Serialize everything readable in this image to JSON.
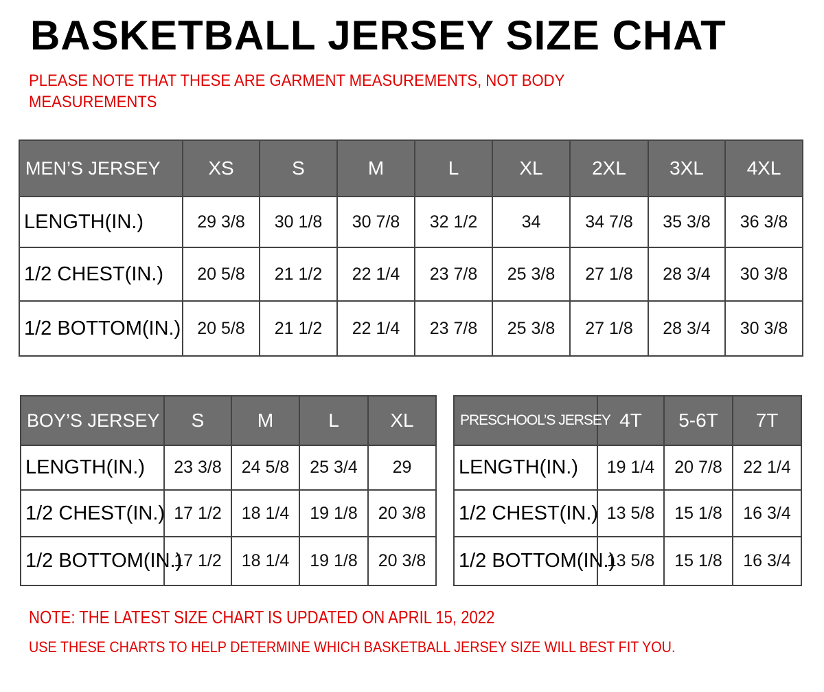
{
  "title": "BASKETBALL JERSEY SIZE CHAT",
  "subtitle_line1": "PLEASE NOTE THAT THESE ARE GARMENT MEASUREMENTS, NOT BODY",
  "subtitle_line2": "MEASUREMENTS",
  "colors": {
    "header_bg": "#6e6e6e",
    "note": "#e00000"
  },
  "tables": {
    "men": {
      "header": [
        "MEN’S JERSEY",
        "XS",
        "S",
        "M",
        "L",
        "XL",
        "2XL",
        "3XL",
        "4XL"
      ],
      "rows": [
        [
          "LENGTH(IN.)",
          "29  3/8",
          "30  1/8",
          "30  7/8",
          "32  1/2",
          "34",
          "34  7/8",
          "35  3/8",
          "36  3/8"
        ],
        [
          "1/2  CHEST(IN.)",
          "20  5/8",
          "21  1/2",
          "22  1/4",
          "23  7/8",
          "25  3/8",
          "27  1/8",
          "28  3/4",
          "30  3/8"
        ],
        [
          "1/2  BOTTOM(IN.)",
          "20  5/8",
          "21  1/2",
          "22  1/4",
          "23  7/8",
          "25  3/8",
          "27  1/8",
          "28  3/4",
          "30  3/8"
        ]
      ]
    },
    "boy": {
      "header": [
        "BOY’S JERSEY",
        "S",
        "M",
        "L",
        "XL"
      ],
      "rows": [
        [
          "LENGTH(IN.)",
          "23  3/8",
          "24  5/8",
          "25  3/4",
          "29"
        ],
        [
          "1/2  CHEST(IN.)",
          "17  1/2",
          "18  1/4",
          "19  1/8",
          "20  3/8"
        ],
        [
          "1/2  BOTTOM(IN.)",
          "17  1/2",
          "18  1/4",
          "19  1/8",
          "20  3/8"
        ]
      ]
    },
    "pre": {
      "header": [
        "PRESCHOOL’S JERSEY",
        "4T",
        "5-6T",
        "7T"
      ],
      "rows": [
        [
          "LENGTH(IN.)",
          "19  1/4",
          "20  7/8",
          "22  1/4"
        ],
        [
          "1/2  CHEST(IN.)",
          "13  5/8",
          "15  1/8",
          "16  3/4"
        ],
        [
          "1/2  BOTTOM(IN.)",
          "13  5/8",
          "15  1/8",
          "16  3/4"
        ]
      ]
    }
  },
  "footer_line1": "NOTE: THE LATEST SIZE CHART IS UPDATED ON APRIL 15, 2022",
  "footer_line2": "USE THESE CHARTS TO HELP DETERMINE WHICH  BASKETBALL JERSEY  SIZE WILL BEST FIT YOU."
}
